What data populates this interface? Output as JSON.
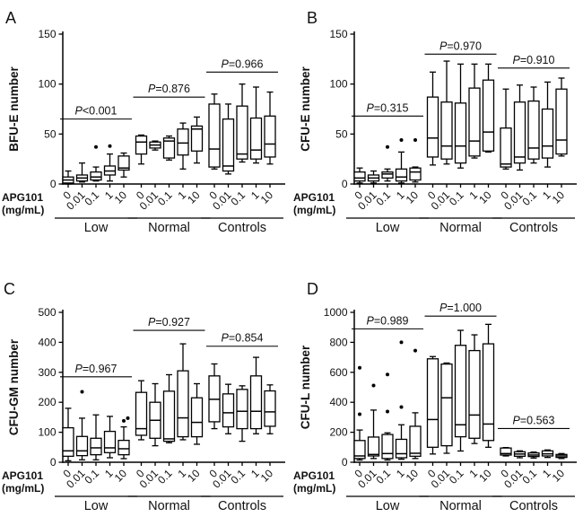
{
  "colors": {
    "stroke": "#000000",
    "text": "#111111",
    "background": "#ffffff"
  },
  "chart_data": {
    "type": "box",
    "legend": "none",
    "grid": false,
    "dose_labels": [
      "0",
      "0.01",
      "0.1",
      "1",
      "10"
    ],
    "x_axis_label_lines": [
      "APG101",
      "(mg/mL)"
    ],
    "group_names": [
      "Low",
      "Normal",
      "Controls"
    ],
    "panels": [
      {
        "panel_label": "A",
        "ylabel": "BFU-E number",
        "ymax": 150,
        "yticks": [
          0,
          50,
          100,
          150
        ],
        "groups": [
          {
            "name": "Low",
            "p_label": "P<0.001",
            "bracket_y": 65,
            "boxes": [
              {
                "lo": 0,
                "q1": 1,
                "med": 4,
                "q3": 7,
                "hi": 13,
                "out": []
              },
              {
                "lo": 2,
                "q1": 3,
                "med": 6,
                "q3": 9,
                "hi": 21,
                "out": []
              },
              {
                "lo": 3,
                "q1": 4,
                "med": 7,
                "q3": 12,
                "hi": 17,
                "out": [
                  37
                ]
              },
              {
                "lo": 3,
                "q1": 9,
                "med": 13,
                "q3": 18,
                "hi": 30,
                "out": [
                  38
                ]
              },
              {
                "lo": 7,
                "q1": 14,
                "med": 16,
                "q3": 28,
                "hi": 31,
                "out": []
              }
            ]
          },
          {
            "name": "Normal",
            "p_label": "P=0.876",
            "bracket_y": 87,
            "boxes": [
              {
                "lo": 20,
                "q1": 30,
                "med": 42,
                "q3": 48,
                "hi": 49,
                "out": []
              },
              {
                "lo": 34,
                "q1": 36,
                "med": 39,
                "q3": 42,
                "hi": 43,
                "out": []
              },
              {
                "lo": 24,
                "q1": 26,
                "med": 43,
                "q3": 46,
                "hi": 48,
                "out": []
              },
              {
                "lo": 15,
                "q1": 29,
                "med": 41,
                "q3": 55,
                "hi": 61,
                "out": []
              },
              {
                "lo": 21,
                "q1": 33,
                "med": 55,
                "q3": 58,
                "hi": 67,
                "out": []
              }
            ]
          },
          {
            "name": "Controls",
            "p_label": "P=0.966",
            "bracket_y": 112,
            "boxes": [
              {
                "lo": 15,
                "q1": 17,
                "med": 35,
                "q3": 80,
                "hi": 90,
                "out": []
              },
              {
                "lo": 10,
                "q1": 13,
                "med": 18,
                "q3": 65,
                "hi": 80,
                "out": []
              },
              {
                "lo": 22,
                "q1": 25,
                "med": 30,
                "q3": 78,
                "hi": 100,
                "out": []
              },
              {
                "lo": 21,
                "q1": 25,
                "med": 34,
                "q3": 66,
                "hi": 97,
                "out": []
              },
              {
                "lo": 20,
                "q1": 27,
                "med": 40,
                "q3": 68,
                "hi": 92,
                "out": []
              }
            ]
          }
        ]
      },
      {
        "panel_label": "B",
        "ylabel": "CFU-E number",
        "ymax": 150,
        "yticks": [
          0,
          50,
          100,
          150
        ],
        "groups": [
          {
            "name": "Low",
            "p_label": "P=0.315",
            "bracket_y": 68,
            "boxes": [
              {
                "lo": 1,
                "q1": 3,
                "med": 6,
                "q3": 12,
                "hi": 16,
                "out": []
              },
              {
                "lo": 1,
                "q1": 3,
                "med": 6,
                "q3": 9,
                "hi": 13,
                "out": []
              },
              {
                "lo": 3,
                "q1": 6,
                "med": 10,
                "q3": 12,
                "hi": 15,
                "out": [
                  37
                ]
              },
              {
                "lo": 1,
                "q1": 3,
                "med": 7,
                "q3": 15,
                "hi": 32,
                "out": [
                  44
                ]
              },
              {
                "lo": 2,
                "q1": 4,
                "med": 12,
                "q3": 16,
                "hi": 17,
                "out": [
                  44
                ]
              }
            ]
          },
          {
            "name": "Normal",
            "p_label": "P=0.970",
            "bracket_y": 130,
            "boxes": [
              {
                "lo": 19,
                "q1": 27,
                "med": 46,
                "q3": 87,
                "hi": 112,
                "out": []
              },
              {
                "lo": 20,
                "q1": 25,
                "med": 38,
                "q3": 82,
                "hi": 123,
                "out": []
              },
              {
                "lo": 16,
                "q1": 21,
                "med": 38,
                "q3": 81,
                "hi": 120,
                "out": []
              },
              {
                "lo": 26,
                "q1": 28,
                "med": 43,
                "q3": 96,
                "hi": 120,
                "out": []
              },
              {
                "lo": 32,
                "q1": 33,
                "med": 52,
                "q3": 104,
                "hi": 120,
                "out": []
              }
            ]
          },
          {
            "name": "Controls",
            "p_label": "P=0.910",
            "bracket_y": 116,
            "boxes": [
              {
                "lo": 15,
                "q1": 17,
                "med": 20,
                "q3": 56,
                "hi": 95,
                "out": []
              },
              {
                "lo": 14,
                "q1": 21,
                "med": 27,
                "q3": 82,
                "hi": 99,
                "out": []
              },
              {
                "lo": 21,
                "q1": 25,
                "med": 36,
                "q3": 83,
                "hi": 97,
                "out": []
              },
              {
                "lo": 17,
                "q1": 26,
                "med": 38,
                "q3": 75,
                "hi": 102,
                "out": []
              },
              {
                "lo": 28,
                "q1": 30,
                "med": 44,
                "q3": 95,
                "hi": 106,
                "out": []
              }
            ]
          }
        ]
      },
      {
        "panel_label": "C",
        "ylabel": "CFU-GM number",
        "ymax": 500,
        "yticks": [
          0,
          100,
          200,
          300,
          400,
          500
        ],
        "groups": [
          {
            "name": "Low",
            "p_label": "P=0.967",
            "bracket_y": 285,
            "boxes": [
              {
                "lo": 5,
                "q1": 20,
                "med": 38,
                "q3": 115,
                "hi": 180,
                "out": []
              },
              {
                "lo": 8,
                "q1": 22,
                "med": 38,
                "q3": 86,
                "hi": 147,
                "out": [
                  235
                ]
              },
              {
                "lo": 8,
                "q1": 25,
                "med": 48,
                "q3": 80,
                "hi": 158,
                "out": []
              },
              {
                "lo": 15,
                "q1": 32,
                "med": 48,
                "q3": 103,
                "hi": 153,
                "out": []
              },
              {
                "lo": 12,
                "q1": 25,
                "med": 45,
                "q3": 73,
                "hi": 118,
                "out": [
                  138,
                  147
                ]
              }
            ]
          },
          {
            "name": "Normal",
            "p_label": "P=0.927",
            "bracket_y": 440,
            "boxes": [
              {
                "lo": 75,
                "q1": 90,
                "med": 112,
                "q3": 233,
                "hi": 272,
                "out": []
              },
              {
                "lo": 55,
                "q1": 80,
                "med": 140,
                "q3": 200,
                "hi": 262,
                "out": []
              },
              {
                "lo": 65,
                "q1": 70,
                "med": 78,
                "q3": 237,
                "hi": 292,
                "out": []
              },
              {
                "lo": 75,
                "q1": 85,
                "med": 148,
                "q3": 305,
                "hi": 395,
                "out": []
              },
              {
                "lo": 60,
                "q1": 85,
                "med": 133,
                "q3": 215,
                "hi": 262,
                "out": []
              }
            ]
          },
          {
            "name": "Controls",
            "p_label": "P=0.854",
            "bracket_y": 387,
            "boxes": [
              {
                "lo": 112,
                "q1": 135,
                "med": 210,
                "q3": 288,
                "hi": 328,
                "out": []
              },
              {
                "lo": 95,
                "q1": 118,
                "med": 165,
                "q3": 228,
                "hi": 260,
                "out": []
              },
              {
                "lo": 70,
                "q1": 112,
                "med": 170,
                "q3": 243,
                "hi": 255,
                "out": []
              },
              {
                "lo": 95,
                "q1": 112,
                "med": 170,
                "q3": 288,
                "hi": 350,
                "out": []
              },
              {
                "lo": 95,
                "q1": 120,
                "med": 168,
                "q3": 238,
                "hi": 258,
                "out": []
              }
            ]
          }
        ]
      },
      {
        "panel_label": "D",
        "ylabel": "CFU-L number",
        "ymax": 1000,
        "yticks": [
          0,
          200,
          400,
          600,
          800,
          1000
        ],
        "groups": [
          {
            "name": "Low",
            "p_label": "P=0.989",
            "bracket_y": 890,
            "boxes": [
              {
                "lo": 15,
                "q1": 25,
                "med": 42,
                "q3": 145,
                "hi": 215,
                "out": [
                  320,
                  630
                ]
              },
              {
                "lo": 25,
                "q1": 42,
                "med": 52,
                "q3": 168,
                "hi": 348,
                "out": [
                  512
                ]
              },
              {
                "lo": 15,
                "q1": 25,
                "med": 58,
                "q3": 185,
                "hi": 196,
                "out": [
                  338,
                  585
                ]
              },
              {
                "lo": 20,
                "q1": 30,
                "med": 57,
                "q3": 153,
                "hi": 250,
                "out": [
                  368,
                  800
                ]
              },
              {
                "lo": 25,
                "q1": 40,
                "med": 60,
                "q3": 240,
                "hi": 330,
                "out": [
                  745
                ]
              }
            ]
          },
          {
            "name": "Normal",
            "p_label": "P=1.000",
            "bracket_y": 975,
            "boxes": [
              {
                "lo": 55,
                "q1": 100,
                "med": 285,
                "q3": 690,
                "hi": 705,
                "out": []
              },
              {
                "lo": 60,
                "q1": 110,
                "med": 430,
                "q3": 655,
                "hi": 662,
                "out": []
              },
              {
                "lo": 75,
                "q1": 170,
                "med": 250,
                "q3": 780,
                "hi": 880,
                "out": []
              },
              {
                "lo": 125,
                "q1": 160,
                "med": 315,
                "q3": 745,
                "hi": 850,
                "out": []
              },
              {
                "lo": 100,
                "q1": 145,
                "med": 255,
                "q3": 790,
                "hi": 920,
                "out": []
              }
            ]
          },
          {
            "name": "Controls",
            "p_label": "P=0.563",
            "bracket_y": 225,
            "boxes": [
              {
                "lo": 42,
                "q1": 48,
                "med": 58,
                "q3": 95,
                "hi": 98,
                "out": []
              },
              {
                "lo": 30,
                "q1": 40,
                "med": 55,
                "q3": 70,
                "hi": 76,
                "out": []
              },
              {
                "lo": 28,
                "q1": 38,
                "med": 48,
                "q3": 62,
                "hi": 68,
                "out": []
              },
              {
                "lo": 32,
                "q1": 42,
                "med": 56,
                "q3": 76,
                "hi": 82,
                "out": []
              },
              {
                "lo": 25,
                "q1": 32,
                "med": 42,
                "q3": 52,
                "hi": 58,
                "out": []
              }
            ]
          }
        ]
      }
    ]
  }
}
